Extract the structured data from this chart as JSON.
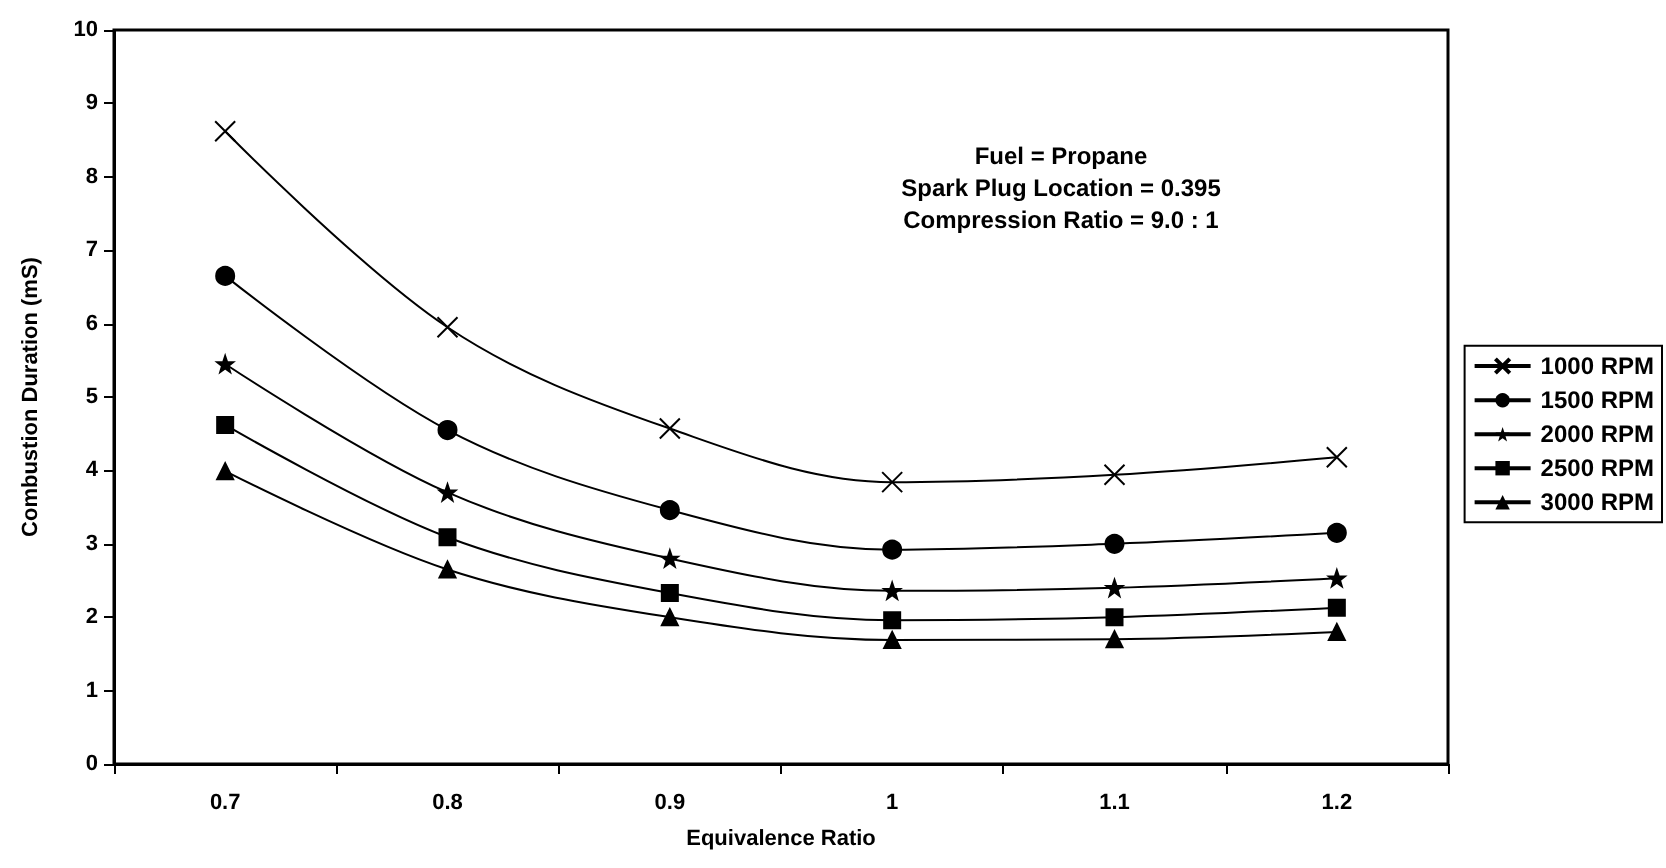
{
  "chart_data": {
    "type": "line",
    "xlabel": "Equivalence Ratio",
    "ylabel": "Combustion Duration (mS)",
    "categories": [
      "0.7",
      "0.8",
      "0.9",
      "1",
      "1.1",
      "1.2"
    ],
    "series": [
      {
        "name": "1000 RPM",
        "color": "#000000",
        "marker": "cross",
        "values": [
          8.62,
          5.95,
          4.57,
          3.84,
          3.94,
          4.18
        ]
      },
      {
        "name": "1500 RPM",
        "color": "#000000",
        "marker": "circle",
        "values": [
          6.65,
          4.55,
          3.46,
          2.92,
          3.0,
          3.15
        ]
      },
      {
        "name": "2000 RPM",
        "color": "#000000",
        "marker": "star",
        "values": [
          5.45,
          3.7,
          2.8,
          2.36,
          2.4,
          2.53
        ]
      },
      {
        "name": "2500 RPM",
        "color": "#000000",
        "marker": "square",
        "values": [
          4.62,
          3.09,
          2.33,
          1.96,
          2.0,
          2.13
        ]
      },
      {
        "name": "3000 RPM",
        "color": "#000000",
        "marker": "triangle",
        "values": [
          3.99,
          2.65,
          2.0,
          1.69,
          1.7,
          1.8
        ]
      }
    ],
    "ylim": [
      0,
      10
    ],
    "yticks": [
      0,
      1,
      2,
      3,
      4,
      5,
      6,
      7,
      8,
      9,
      10
    ],
    "grid": false,
    "legend": "right",
    "line_style": "solid",
    "annotations": [
      "Fuel = Propane",
      "Spark Plug Location = 0.395",
      "Compression Ratio = 9.0 : 1"
    ]
  }
}
